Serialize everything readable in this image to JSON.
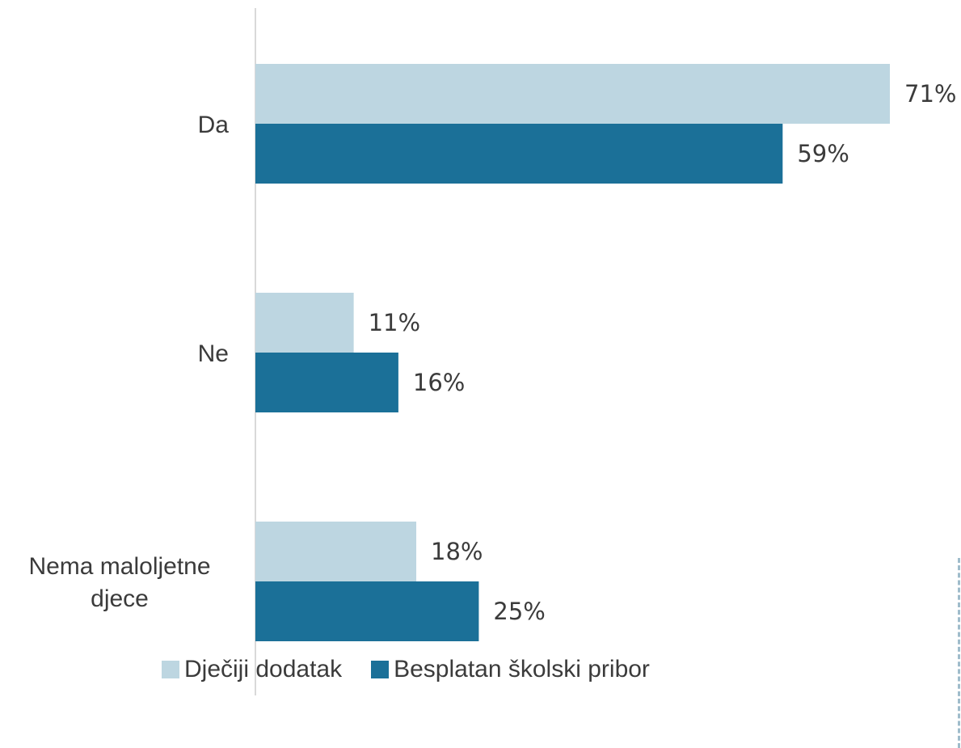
{
  "chart_data": {
    "type": "bar",
    "orientation": "horizontal",
    "categories": [
      "Da",
      "Ne",
      "Nema maloljetne djece"
    ],
    "category_lines": [
      [
        "Da"
      ],
      [
        "Ne"
      ],
      [
        "Nema maloljetne",
        "djece"
      ]
    ],
    "series": [
      {
        "name": "Dječiji dodatak",
        "values": [
          71,
          11,
          18
        ],
        "labels": [
          "71%",
          "11%",
          "18%"
        ],
        "color": "#bdd6e1"
      },
      {
        "name": "Besplatan školski pribor",
        "values": [
          59,
          16,
          25
        ],
        "labels": [
          "59%",
          "16%",
          "25%"
        ],
        "color": "#1b7098"
      }
    ],
    "xlim": [
      0,
      71
    ],
    "unit": "%",
    "legend_position": "bottom",
    "grid": false
  }
}
